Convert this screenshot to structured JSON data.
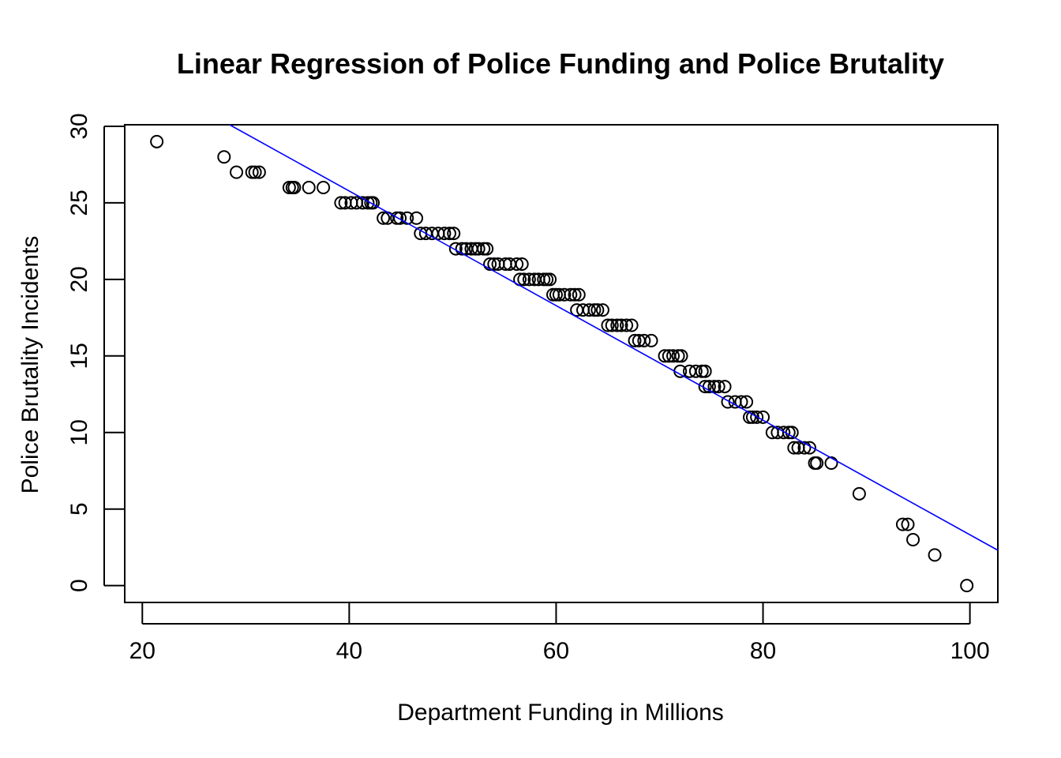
{
  "chart_data": {
    "type": "scatter",
    "title": "Linear Regression of Police Funding and Police Brutality",
    "xlabel": "Department Funding in Millions",
    "ylabel": "Police Brutality Incidents",
    "xlim": [
      18.3,
      102.7
    ],
    "ylim": [
      -1.1,
      30.1
    ],
    "xticks": [
      20,
      40,
      60,
      80,
      100
    ],
    "yticks": [
      0,
      5,
      10,
      15,
      20,
      25,
      30
    ],
    "grid": false,
    "legend": "none",
    "series": [
      {
        "points": [
          [
            21.4,
            29
          ],
          [
            27.9,
            28
          ],
          [
            29.1,
            27
          ],
          [
            30.6,
            27
          ],
          [
            30.9,
            27
          ],
          [
            31.3,
            27
          ],
          [
            34.2,
            26
          ],
          [
            34.5,
            26
          ],
          [
            34.7,
            26
          ],
          [
            36.1,
            26
          ],
          [
            37.5,
            26
          ],
          [
            39.2,
            25
          ],
          [
            39.6,
            25
          ],
          [
            40.2,
            25
          ],
          [
            40.7,
            25
          ],
          [
            41.3,
            25
          ],
          [
            41.8,
            25
          ],
          [
            42.1,
            25
          ],
          [
            42.3,
            25
          ],
          [
            43.3,
            24
          ],
          [
            43.7,
            24
          ],
          [
            44.6,
            24
          ],
          [
            44.9,
            24
          ],
          [
            45.6,
            24
          ],
          [
            46.5,
            24
          ],
          [
            46.9,
            23
          ],
          [
            47.4,
            23
          ],
          [
            48.0,
            23
          ],
          [
            48.6,
            23
          ],
          [
            49.2,
            23
          ],
          [
            49.7,
            23
          ],
          [
            50.1,
            23
          ],
          [
            50.3,
            22
          ],
          [
            50.9,
            22
          ],
          [
            51.3,
            22
          ],
          [
            51.8,
            22
          ],
          [
            52.2,
            22
          ],
          [
            52.5,
            22
          ],
          [
            53.0,
            22
          ],
          [
            53.3,
            22
          ],
          [
            53.6,
            21
          ],
          [
            54.0,
            21
          ],
          [
            54.4,
            21
          ],
          [
            55.1,
            21
          ],
          [
            55.5,
            21
          ],
          [
            56.2,
            21
          ],
          [
            56.7,
            21
          ],
          [
            56.5,
            20
          ],
          [
            56.9,
            20
          ],
          [
            57.4,
            20
          ],
          [
            57.9,
            20
          ],
          [
            58.3,
            20
          ],
          [
            58.8,
            20
          ],
          [
            59.1,
            20
          ],
          [
            59.4,
            20
          ],
          [
            59.7,
            19
          ],
          [
            60.0,
            19
          ],
          [
            60.3,
            19
          ],
          [
            60.8,
            19
          ],
          [
            61.4,
            19
          ],
          [
            61.8,
            19
          ],
          [
            62.2,
            19
          ],
          [
            62.0,
            18
          ],
          [
            62.6,
            18
          ],
          [
            63.2,
            18
          ],
          [
            63.7,
            18
          ],
          [
            64.0,
            18
          ],
          [
            64.5,
            18
          ],
          [
            65.0,
            17
          ],
          [
            65.4,
            17
          ],
          [
            65.9,
            17
          ],
          [
            66.3,
            17
          ],
          [
            66.8,
            17
          ],
          [
            67.3,
            17
          ],
          [
            67.6,
            16
          ],
          [
            68.0,
            16
          ],
          [
            68.5,
            16
          ],
          [
            69.2,
            16
          ],
          [
            70.5,
            15
          ],
          [
            70.9,
            15
          ],
          [
            71.3,
            15
          ],
          [
            71.8,
            15
          ],
          [
            72.1,
            15
          ],
          [
            72.0,
            14
          ],
          [
            72.9,
            14
          ],
          [
            73.5,
            14
          ],
          [
            74.1,
            14
          ],
          [
            74.4,
            14
          ],
          [
            74.4,
            13
          ],
          [
            74.8,
            13
          ],
          [
            75.3,
            13
          ],
          [
            75.7,
            13
          ],
          [
            76.3,
            13
          ],
          [
            76.6,
            12
          ],
          [
            77.3,
            12
          ],
          [
            77.9,
            12
          ],
          [
            78.4,
            12
          ],
          [
            78.7,
            11
          ],
          [
            79.0,
            11
          ],
          [
            79.4,
            11
          ],
          [
            80.0,
            11
          ],
          [
            80.9,
            10
          ],
          [
            81.4,
            10
          ],
          [
            82.0,
            10
          ],
          [
            82.5,
            10
          ],
          [
            82.8,
            10
          ],
          [
            83.0,
            9
          ],
          [
            83.4,
            9
          ],
          [
            84.0,
            9
          ],
          [
            84.5,
            9
          ],
          [
            85.0,
            8
          ],
          [
            85.2,
            8
          ],
          [
            86.6,
            8
          ],
          [
            89.3,
            6
          ],
          [
            93.5,
            4
          ],
          [
            94.0,
            4
          ],
          [
            94.5,
            3
          ],
          [
            96.6,
            2
          ],
          [
            99.7,
            0
          ]
        ]
      }
    ],
    "regression_line": {
      "color": "#0000ff",
      "slope": -0.3742,
      "intercept": 40.74
    }
  }
}
